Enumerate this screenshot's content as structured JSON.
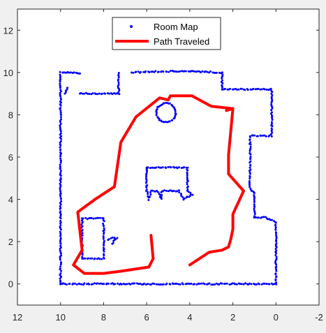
{
  "chart_data": {
    "type": "scatter",
    "title": "",
    "xlabel": "",
    "ylabel": "",
    "x_reversed": true,
    "xlim": [
      -2,
      12
    ],
    "ylim": [
      -1,
      13
    ],
    "xticks": [
      12,
      10,
      8,
      6,
      4,
      2,
      0,
      -2
    ],
    "yticks": [
      0,
      2,
      4,
      6,
      8,
      10,
      12
    ],
    "grid": false,
    "legend": {
      "placement": "top-center",
      "entries": [
        "Room Map",
        "Path Traveled"
      ]
    },
    "colors": {
      "room_map": "#0000ff",
      "path": "#ff0000"
    },
    "series": [
      {
        "name": "Room Map",
        "type": "scatter",
        "polylines": [
          [
            [
              10,
              0
            ],
            [
              10,
              10
            ],
            [
              9.5,
              10
            ],
            [
              9.3,
              10
            ],
            [
              9.1,
              9.95
            ]
          ],
          [
            [
              10,
              0
            ],
            [
              0,
              0
            ],
            [
              0,
              1.5
            ],
            [
              0,
              2.9
            ]
          ],
          [
            [
              0.05,
              2.95
            ],
            [
              0.5,
              3.15
            ],
            [
              1.0,
              3.15
            ],
            [
              1.0,
              3.7
            ],
            [
              1.0,
              4.3
            ]
          ],
          [
            [
              1.0,
              4.3
            ],
            [
              1.2,
              4.5
            ],
            [
              1.2,
              5.5
            ],
            [
              1.2,
              6.5
            ],
            [
              1.2,
              7.0
            ],
            [
              0.6,
              7.0
            ],
            [
              0.2,
              7.0
            ],
            [
              0.2,
              8.2
            ],
            [
              0.2,
              9.0
            ],
            [
              0.2,
              9.2
            ],
            [
              1.5,
              9.2
            ],
            [
              2.5,
              9.2
            ]
          ],
          [
            [
              2.5,
              9.2
            ],
            [
              2.5,
              10.0
            ],
            [
              4.0,
              10.05
            ],
            [
              5.5,
              10.05
            ],
            [
              6.7,
              10.0
            ]
          ],
          [
            [
              7.3,
              10.0
            ],
            [
              7.3,
              9.6
            ],
            [
              7.3,
              9.0
            ],
            [
              7.9,
              9.0
            ],
            [
              8.5,
              9.0
            ],
            [
              8.9,
              9.0
            ],
            [
              9.1,
              9.0
            ]
          ],
          [
            [
              9.7,
              9.3
            ],
            [
              9.8,
              9.0
            ]
          ],
          [
            [
              6.0,
              5.5
            ],
            [
              4.1,
              5.5
            ],
            [
              4.1,
              4.4
            ],
            [
              3.9,
              4.2
            ],
            [
              4.3,
              4.0
            ],
            [
              4.5,
              4.4
            ],
            [
              5.1,
              4.4
            ],
            [
              5.3,
              4.4
            ],
            [
              5.3,
              4.0
            ],
            [
              5.5,
              4.4
            ],
            [
              5.8,
              4.4
            ],
            [
              5.9,
              4.0
            ],
            [
              6.0,
              4.4
            ],
            [
              6.0,
              5.5
            ]
          ],
          [
            [
              9.0,
              3.1
            ],
            [
              8.0,
              3.1
            ],
            [
              8.0,
              1.2
            ],
            [
              9.0,
              1.2
            ],
            [
              9.0,
              3.1
            ]
          ],
          [
            [
              7.8,
              2.1
            ],
            [
              7.4,
              2.2
            ],
            [
              7.6,
              1.9
            ]
          ]
        ],
        "rings": [
          {
            "cx": 5.1,
            "cy": 8.1,
            "r": 0.45
          }
        ]
      },
      {
        "name": "Path Traveled",
        "type": "line",
        "x": [
          5.8,
          5.7,
          5.9,
          7.2,
          8.0,
          8.9,
          9.4,
          9.0,
          9.2,
          8.4,
          7.5,
          7.2,
          6.5,
          5.4,
          5.0,
          4.9,
          4.2,
          3.9,
          3.0,
          2.1,
          2.3,
          2.0,
          2.1,
          2.2,
          2.2,
          1.5,
          2.0,
          2.0,
          2.1,
          2.2,
          2.5,
          3.1,
          4.0
        ],
        "y": [
          2.3,
          1.2,
          0.8,
          0.6,
          0.5,
          0.5,
          0.9,
          1.6,
          3.4,
          4.0,
          4.6,
          6.7,
          7.9,
          8.8,
          8.7,
          8.9,
          8.9,
          8.9,
          8.4,
          8.3,
          8.2,
          8.3,
          7.2,
          6.1,
          5.2,
          4.4,
          3.3,
          2.6,
          2.1,
          1.75,
          1.6,
          1.5,
          0.9
        ]
      }
    ]
  }
}
